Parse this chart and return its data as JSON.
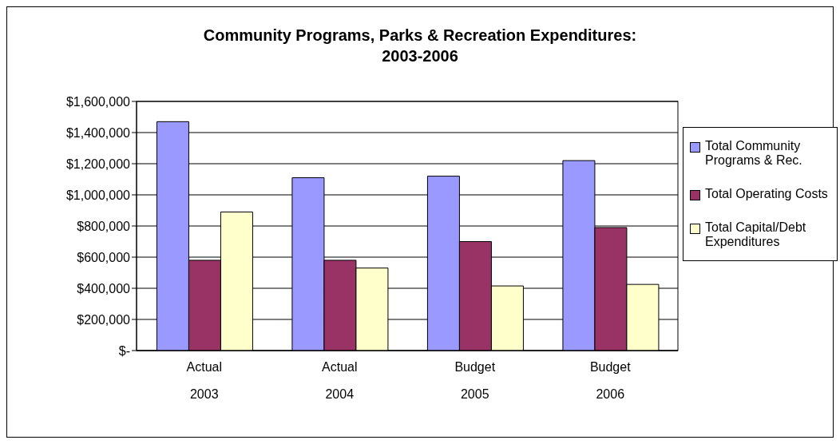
{
  "chart_data": {
    "type": "bar",
    "title": "Community Programs, Parks & Recreation Expenditures:\n2003-2006",
    "categories": [
      "Actual\n2003",
      "Actual\n2004",
      "Budget\n2005",
      "Budget\n2006"
    ],
    "series": [
      {
        "name": "Total Community Programs & Rec.",
        "color": "#9999ff",
        "values": [
          1470000,
          1110000,
          1120000,
          1220000
        ]
      },
      {
        "name": "Total Operating Costs",
        "color": "#993366",
        "values": [
          580000,
          580000,
          700000,
          790000
        ]
      },
      {
        "name": "Total Capital/Debt Expenditures",
        "color": "#ffffcc",
        "values": [
          890000,
          530000,
          415000,
          425000
        ]
      }
    ],
    "ylim": [
      0,
      1600000
    ],
    "yticks": [
      {
        "value": 0,
        "label": "$-"
      },
      {
        "value": 200000,
        "label": "$200,000"
      },
      {
        "value": 400000,
        "label": "$400,000"
      },
      {
        "value": 600000,
        "label": "$600,000"
      },
      {
        "value": 800000,
        "label": "$800,000"
      },
      {
        "value": 1000000,
        "label": "$1,000,000"
      },
      {
        "value": 1200000,
        "label": "$1,200,000"
      },
      {
        "value": 1400000,
        "label": "$1,400,000"
      },
      {
        "value": 1600000,
        "label": "$1,600,000"
      }
    ],
    "grid": "y",
    "legend": "right"
  }
}
